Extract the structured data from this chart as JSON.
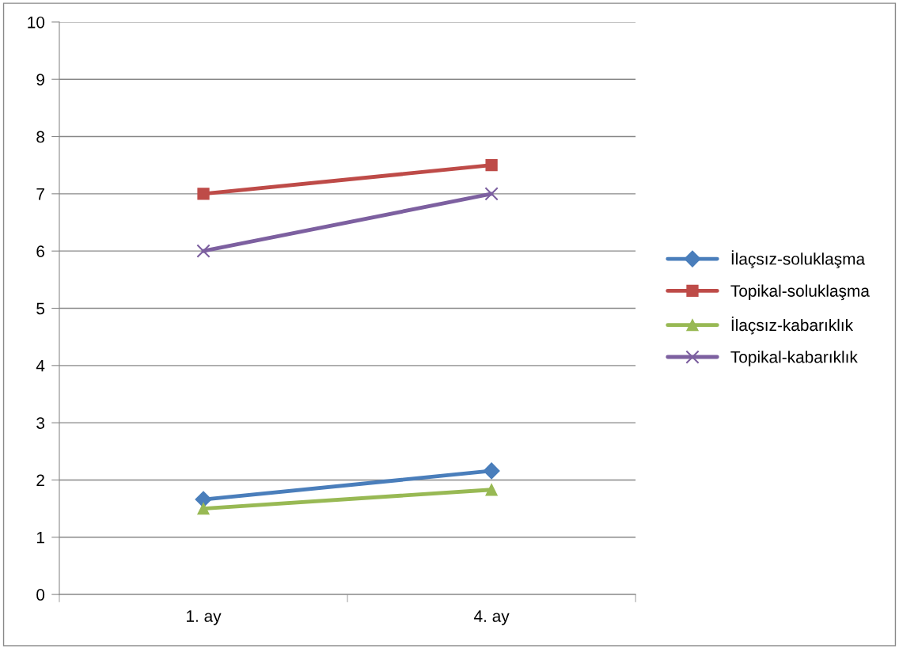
{
  "chart_data": {
    "type": "line",
    "categories": [
      "1. ay",
      "4. ay"
    ],
    "series": [
      {
        "name": "İlaçsız-soluklaşma",
        "color": "#4a7ebb",
        "marker": "diamond",
        "values": [
          1.66,
          2.16
        ]
      },
      {
        "name": "Topikal-soluklaşma",
        "color": "#be4b48",
        "marker": "square",
        "values": [
          7,
          7.5
        ]
      },
      {
        "name": "İlaçsız-kabarıklık",
        "color": "#98b954",
        "marker": "triangle",
        "values": [
          1.5,
          1.83
        ]
      },
      {
        "name": "Topikal-kabarıklık",
        "color": "#7d60a0",
        "marker": "cross",
        "values": [
          6,
          7
        ]
      }
    ],
    "ylim": [
      0,
      10
    ],
    "yticks": [
      0,
      1,
      2,
      3,
      4,
      5,
      6,
      7,
      8,
      9,
      10
    ],
    "grid": "y",
    "legend": "right",
    "line_style": "solid"
  }
}
